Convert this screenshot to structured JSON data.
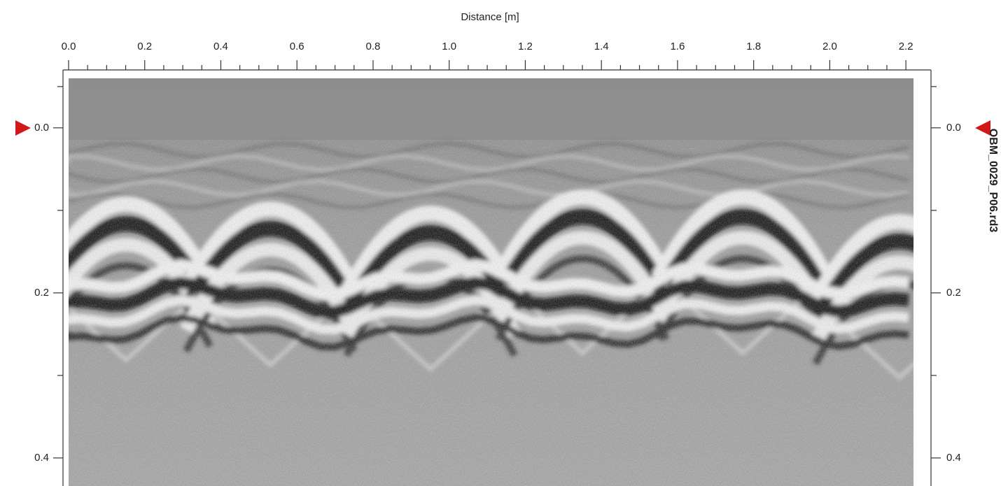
{
  "chart_data": {
    "type": "radargram",
    "x_label": "Distance [m]",
    "file_label": "OBM_0029_P06.rd3",
    "xlim": [
      0,
      2.22
    ],
    "xticks": [
      {
        "value": 0,
        "label": "0.0"
      },
      0.2,
      0.4,
      0.6,
      0.8,
      {
        "value": 1,
        "label": "1.0"
      },
      1.2,
      1.4,
      1.6,
      1.8,
      {
        "value": 2,
        "label": "2.0"
      },
      2.2
    ],
    "xminorticks": [
      0.05,
      0.1,
      0.15,
      0.25,
      0.3,
      0.35,
      0.45,
      0.5,
      0.55,
      0.65,
      0.7,
      0.75,
      0.85,
      0.9,
      0.95,
      1.05,
      1.1,
      1.15,
      1.25,
      1.3,
      1.35,
      1.45,
      1.5,
      1.55,
      1.65,
      1.7,
      1.75,
      1.85,
      1.9,
      1.95,
      2.05,
      2.1,
      2.15
    ],
    "ylim": [
      -0.06,
      0.434
    ],
    "yticks": [
      {
        "value": 0,
        "label": "0.0"
      },
      0.2,
      0.4
    ],
    "yminorticks": [
      -0.05,
      0.1,
      0.3
    ]
  }
}
